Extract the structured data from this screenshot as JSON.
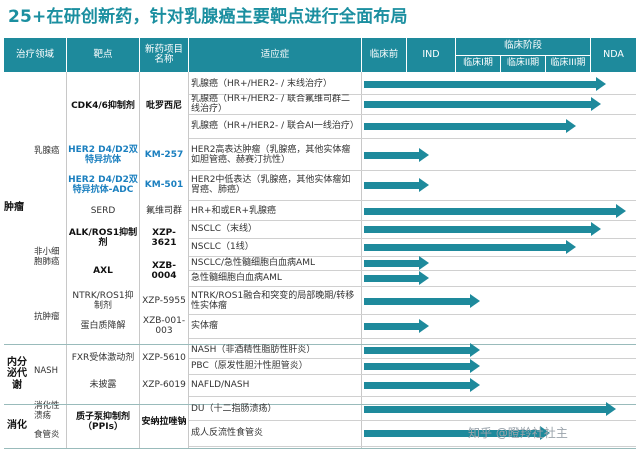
{
  "title": "25+在研创新药，针对乳腺癌主要靶点进行全面布局",
  "headers": {
    "area": "治疗领域",
    "target": "靶点",
    "drug_line1": "新药项目",
    "drug_line2": "名称",
    "indication": "适应症",
    "preclinical": "临床前",
    "ind": "IND",
    "clinical_stage": "临床阶段",
    "phase1": "临床I期",
    "phase2": "临床II期",
    "phase3": "临床III期",
    "nda": "NDA"
  },
  "areas": {
    "oncology": "肿瘤",
    "endocrine": "内分泌代谢",
    "digestive": "消化"
  },
  "subareas": {
    "breast": "乳腺癌",
    "nsclc": "非小细胞肺癌",
    "antitumor": "抗肿瘤",
    "nash": "NASH",
    "ulcer": "消化性溃疡",
    "reflux": "食管炎"
  },
  "rows": [
    {
      "target": "CDK4/6抑制剂",
      "drug": "吡罗西尼",
      "indication": "乳腺癌（HR+/HER2- / 末线治疗）",
      "stage": 0.92
    },
    {
      "target": "",
      "drug": "",
      "indication": "乳腺癌（HR+/HER2- / 联合氟维司群二线治疗）",
      "stage": 0.9
    },
    {
      "target": "",
      "drug": "",
      "indication": "乳腺癌（HR+/HER2- / 联合AI一线治疗）",
      "stage": 0.8
    },
    {
      "target": "HER2 D4/D2双特异抗体",
      "drug": "KM-257",
      "indication": "HER2高表达肿瘤（乳腺癌，其他实体瘤如胆管癌、赫赛汀抗性）",
      "stage": 0.22
    },
    {
      "target": "HER2 D4/D2双特异抗体-ADC",
      "drug": "KM-501",
      "indication": "HER2中低表达（乳腺癌，其他实体瘤如胃癌、肺癌）",
      "stage": 0.22
    },
    {
      "target": "SERD",
      "drug": "氟维司群",
      "indication": "HR+和或ER+乳腺癌",
      "stage": 1.0
    },
    {
      "target": "ALK/ROS1抑制剂",
      "drug": "XZP-3621",
      "indication": "NSCLC（末线）",
      "stage": 0.9
    },
    {
      "target": "",
      "drug": "",
      "indication": "NSCLC（1线）",
      "stage": 0.8
    },
    {
      "target": "AXL",
      "drug": "XZB-0004",
      "indication": "NSCLC/急性髓细胞白血病AML",
      "stage": 0.22
    },
    {
      "target": "",
      "drug": "",
      "indication": "急性髓细胞白血病AML",
      "stage": 0.22
    },
    {
      "target": "NTRK/ROS1抑制剂",
      "drug": "XZP-5955",
      "indication": "NTRK/ROS1融合和突变的局部晚期/转移性实体瘤",
      "stage": 0.42
    },
    {
      "target": "蛋白质降解",
      "drug": "XZB-001-003",
      "indication": "实体瘤",
      "stage": 0.22
    },
    {
      "target": "FXR受体激动剂",
      "drug": "XZP-5610",
      "indication": "NASH（非酒精性脂肪性肝炎）",
      "stage": 0.42
    },
    {
      "target": "",
      "drug": "",
      "indication": "PBC（原发性胆汁性胆管炎）",
      "stage": 0.42
    },
    {
      "target": "未披露",
      "drug": "XZP-6019",
      "indication": "NAFLD/NASH",
      "stage": 0.42
    },
    {
      "target": "质子泵抑制剂（PPIs）",
      "drug": "安纳拉唑钠",
      "indication": "DU（十二指肠溃疡）",
      "stage": 0.96
    },
    {
      "target": "",
      "drug": "",
      "indication": "成人反流性食管炎",
      "stage": 0.7
    }
  ],
  "watermark": "知乎 @瞪羚社社主"
}
